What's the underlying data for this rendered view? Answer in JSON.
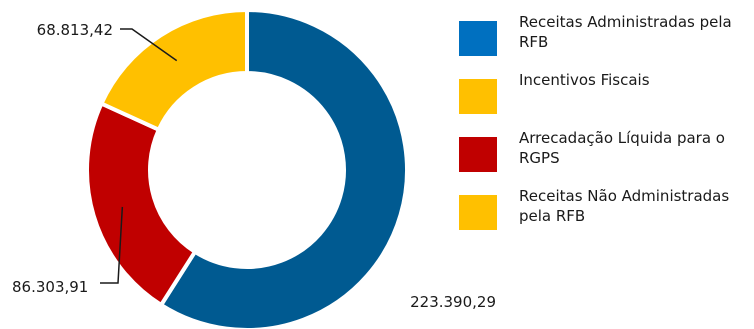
{
  "chart_data": {
    "type": "pie",
    "donut": true,
    "title": "",
    "categories": [
      "Receitas Administradas pela RFB",
      "Incentivos Fiscais",
      "Arrecadação Líquida para o RGPS",
      "Receitas Não Administradas pela RFB"
    ],
    "values": [
      223390.29,
      0,
      86303.91,
      68813.42
    ],
    "value_labels": [
      "223.390,29",
      "",
      "86.303,91",
      "68.813,42"
    ],
    "colors": [
      "#005a91",
      "#ffc000",
      "#c00000",
      "#ffc000"
    ],
    "legend": {
      "position": "right",
      "swatch_colors": [
        "#0070c0",
        "#ffc000",
        "#c00000",
        "#ffc000"
      ]
    }
  }
}
